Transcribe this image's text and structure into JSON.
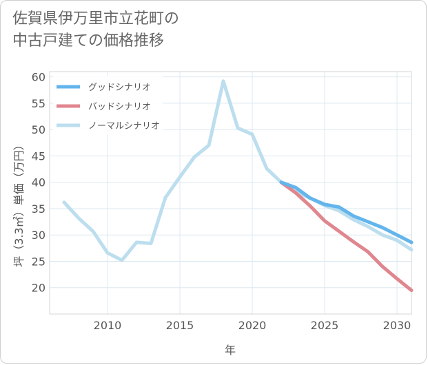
{
  "title": {
    "line1": "佐賀県伊万里市立花町の",
    "line2": "中古戸建ての価格推移"
  },
  "chart_data": {
    "type": "line",
    "title": "佐賀県伊万里市立花町の中古戸建ての価格推移",
    "xlabel": "年",
    "ylabel": "坪（3.3㎡）単価（万円）",
    "xlim": [
      2006,
      2031
    ],
    "ylim": [
      15,
      61
    ],
    "xticks": [
      2010,
      2015,
      2020,
      2025,
      2030
    ],
    "yticks": [
      20,
      25,
      30,
      35,
      40,
      45,
      50,
      55,
      60
    ],
    "grid": true,
    "legend_position": "top-left",
    "series": [
      {
        "name": "グッドシナリオ",
        "color": "#64b5ec",
        "x": [
          2022,
          2023,
          2024,
          2025,
          2026,
          2027,
          2028,
          2029,
          2030,
          2031
        ],
        "values": [
          40.0,
          39.0,
          37.0,
          35.8,
          35.3,
          33.6,
          32.5,
          31.4,
          30.0,
          28.6
        ]
      },
      {
        "name": "バッドシナリオ",
        "color": "#e0868e",
        "x": [
          2022,
          2023,
          2024,
          2025,
          2026,
          2027,
          2028,
          2029,
          2030,
          2031
        ],
        "values": [
          40.0,
          38.0,
          35.5,
          32.7,
          30.7,
          28.7,
          26.8,
          24.0,
          21.7,
          19.5
        ]
      },
      {
        "name": "ノーマルシナリオ",
        "color": "#bcdeee",
        "x": [
          2007,
          2008,
          2009,
          2010,
          2011,
          2012,
          2013,
          2014,
          2015,
          2016,
          2017,
          2018,
          2019,
          2020,
          2021,
          2022,
          2023,
          2024,
          2025,
          2026,
          2027,
          2028,
          2029,
          2030,
          2031
        ],
        "values": [
          36.2,
          33.2,
          30.7,
          26.6,
          25.2,
          28.6,
          28.4,
          37.1,
          41.0,
          44.8,
          47.0,
          59.2,
          50.3,
          49.1,
          42.6,
          40.0,
          38.2,
          37.0,
          35.6,
          34.6,
          32.9,
          31.6,
          30.0,
          29.0,
          27.2
        ]
      }
    ]
  }
}
